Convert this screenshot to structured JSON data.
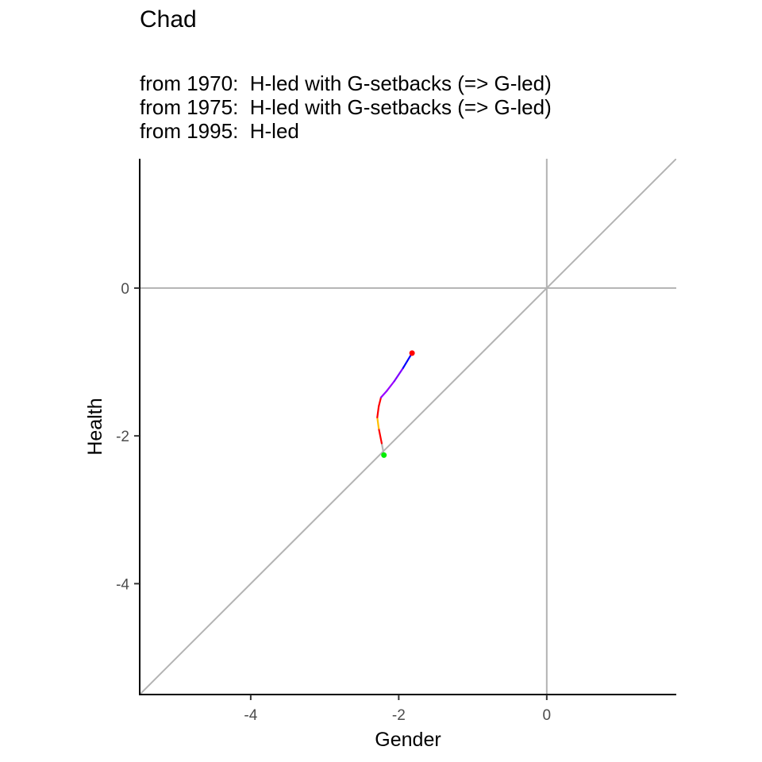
{
  "chart_data": {
    "type": "line",
    "title": "Chad",
    "subtitle_lines": [
      "from 1970:  H-led with G-setbacks (=> G-led)",
      "from 1975:  H-led with G-setbacks (=> G-led)",
      "from 1995:  H-led"
    ],
    "xlabel": "Gender",
    "ylabel": "Health",
    "xlim": [
      -5.5,
      1.75
    ],
    "ylim": [
      -5.5,
      1.75
    ],
    "x_ticks": [
      -4,
      -2,
      0
    ],
    "y_ticks": [
      0,
      -2,
      -4
    ],
    "reference_lines": {
      "horizontal_at": 0,
      "vertical_at": 0,
      "diagonal": "y = x",
      "color": "#b3b3b3"
    },
    "path": {
      "points": [
        {
          "x": -2.2,
          "y": -2.26
        },
        {
          "x": -2.23,
          "y": -2.1
        },
        {
          "x": -2.27,
          "y": -1.9
        },
        {
          "x": -2.29,
          "y": -1.75
        },
        {
          "x": -2.27,
          "y": -1.6
        },
        {
          "x": -2.24,
          "y": -1.48
        },
        {
          "x": -2.16,
          "y": -1.39
        },
        {
          "x": -2.06,
          "y": -1.26
        },
        {
          "x": -1.94,
          "y": -1.08
        },
        {
          "x": -1.82,
          "y": -0.88
        }
      ],
      "segment_colors": [
        "#b3b3b3",
        "#ff0000",
        "#ffbf00",
        "#ff0000",
        "#ff0000",
        "#9900ff",
        "#9900ff",
        "#7f00ff",
        "#0000ff"
      ],
      "start_color": "#00ee00",
      "end_color": "#ff0000"
    }
  }
}
